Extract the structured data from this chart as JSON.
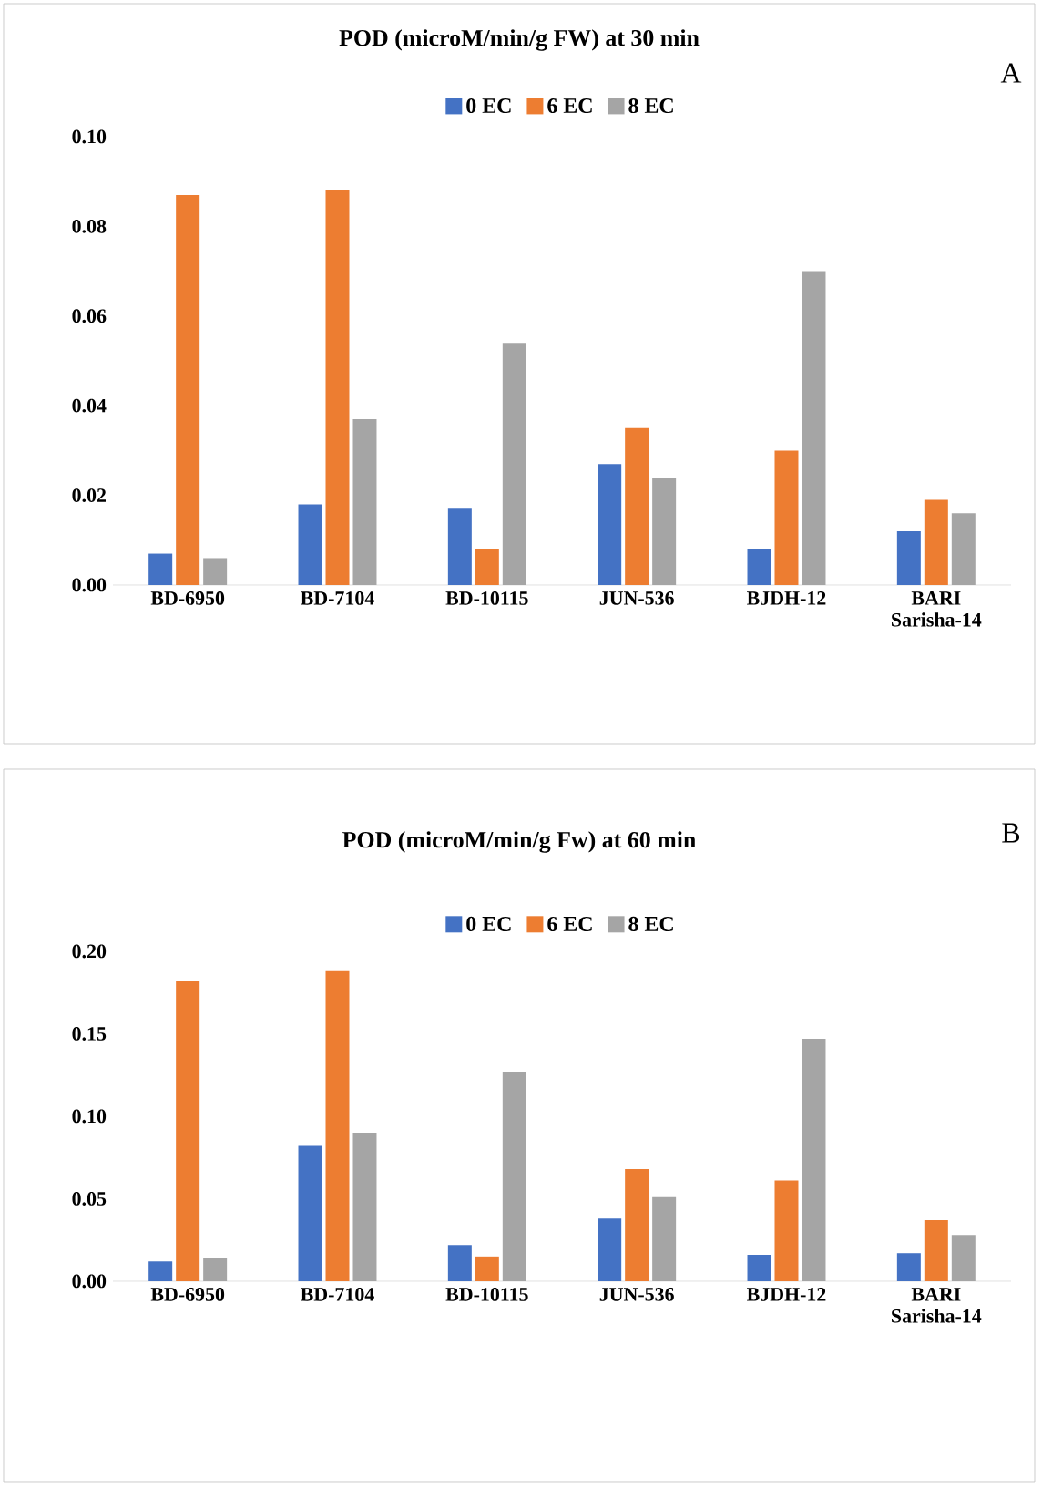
{
  "chart_data": [
    {
      "type": "bar",
      "title": "POD (microM/min/g  FW) at 30 min",
      "annotations": [
        "A"
      ],
      "categories": [
        "BD-6950",
        "BD-7104",
        "BD-10115",
        "JUN-536",
        "BJDH-12",
        "BARI Sarisha-14"
      ],
      "series": [
        {
          "name": "0 EC",
          "color": "#4472c4",
          "values": [
            0.007,
            0.018,
            0.017,
            0.027,
            0.008,
            0.012
          ]
        },
        {
          "name": "6 EC",
          "color": "#ed7d31",
          "values": [
            0.087,
            0.088,
            0.008,
            0.035,
            0.03,
            0.019
          ]
        },
        {
          "name": "8 EC",
          "color": "#a5a5a5",
          "values": [
            0.006,
            0.037,
            0.054,
            0.024,
            0.07,
            0.016
          ]
        }
      ],
      "ylim": [
        0,
        0.1
      ],
      "yticks": [
        {
          "value": 0,
          "label": "0.00"
        },
        {
          "value": 0.02,
          "label": "0.02"
        },
        {
          "value": 0.04,
          "label": "0.04"
        },
        {
          "value": 0.06,
          "label": "0.06"
        },
        {
          "value": 0.08,
          "label": "0.08"
        },
        {
          "value": 0.1,
          "label": "0.10"
        }
      ],
      "grid": false,
      "legend": "top"
    },
    {
      "type": "bar",
      "title": "POD (microM/min/g  Fw) at 60 min",
      "annotations": [
        "B"
      ],
      "categories": [
        "BD-6950",
        "BD-7104",
        "BD-10115",
        "JUN-536",
        "BJDH-12",
        "BARI Sarisha-14"
      ],
      "series": [
        {
          "name": "0 EC",
          "color": "#4472c4",
          "values": [
            0.012,
            0.082,
            0.022,
            0.038,
            0.016,
            0.017
          ]
        },
        {
          "name": "6 EC",
          "color": "#ed7d31",
          "values": [
            0.182,
            0.188,
            0.015,
            0.068,
            0.061,
            0.037
          ]
        },
        {
          "name": "8 EC",
          "color": "#a5a5a5",
          "values": [
            0.014,
            0.09,
            0.127,
            0.051,
            0.147,
            0.028
          ]
        }
      ],
      "ylim": [
        0,
        0.2
      ],
      "yticks": [
        {
          "value": 0,
          "label": "0.00"
        },
        {
          "value": 0.05,
          "label": "0.05"
        },
        {
          "value": 0.1,
          "label": "0.10"
        },
        {
          "value": 0.15,
          "label": "0.15"
        },
        {
          "value": 0.2,
          "label": "0.20"
        }
      ],
      "grid": false,
      "legend": "top"
    }
  ]
}
